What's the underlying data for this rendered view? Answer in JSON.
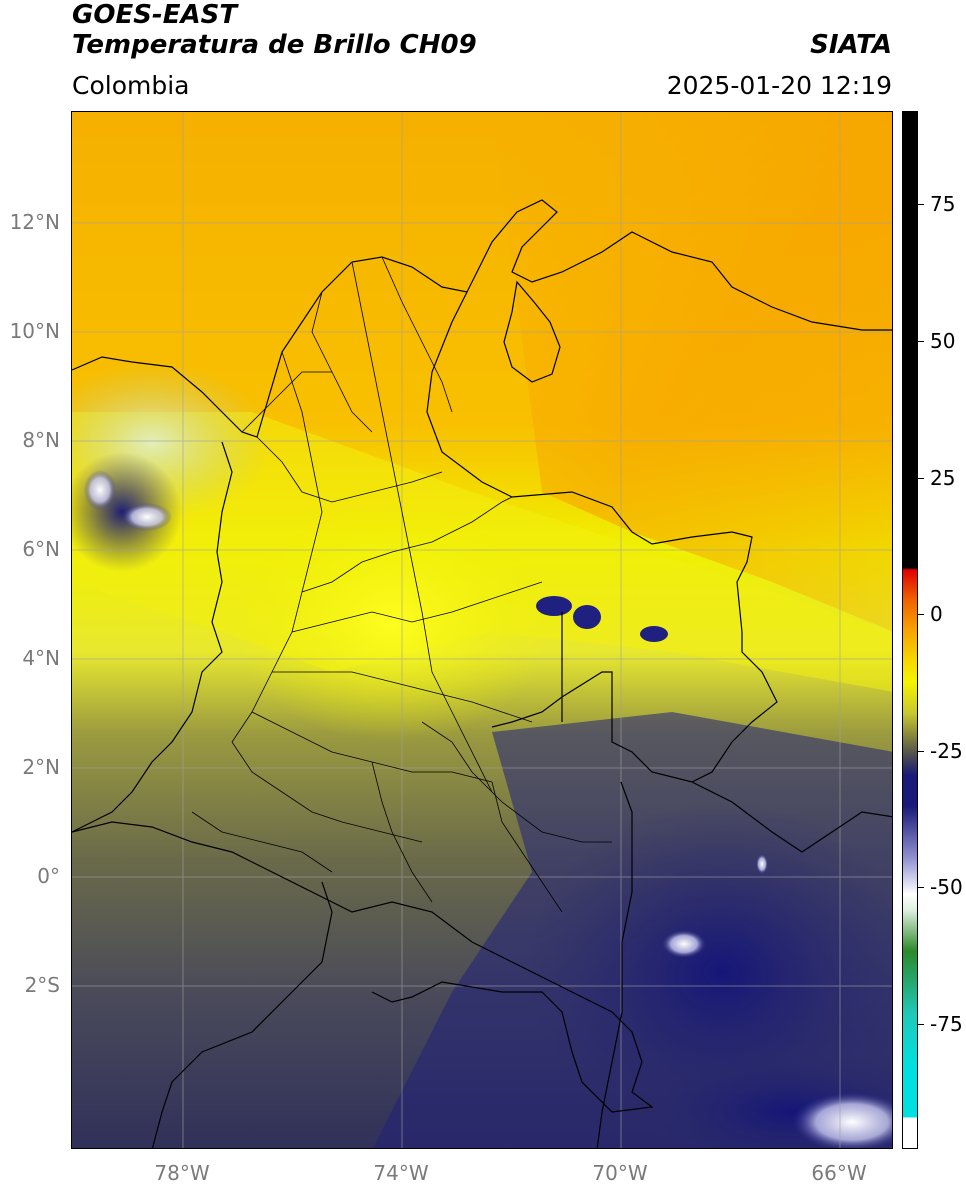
{
  "header": {
    "satellite": "GOES-EAST",
    "product": "Temperatura de Brillo CH09",
    "brand": "SIATA",
    "region": "Colombia",
    "datetime": "2025-01-20 12:19"
  },
  "map": {
    "lat_labels": [
      "12°N",
      "10°N",
      "8°N",
      "6°N",
      "4°N",
      "2°N",
      "0°",
      "2°S"
    ],
    "lon_labels": [
      "78°W",
      "74°W",
      "70°W",
      "66°W"
    ]
  },
  "colorbar": {
    "ticks": [
      "75",
      "50",
      "25",
      "0",
      "-25",
      "-50",
      "-75"
    ],
    "colors": {
      "black": "#000000",
      "red": "#e02000",
      "orange": "#f7a300",
      "yellow": "#f5f500",
      "olive": "#8c8c3a",
      "gray": "#505050",
      "navy": "#1a1a7a",
      "white": "#ffffff",
      "green": "#2a8a2a",
      "teal": "#20c8b8",
      "cyan": "#00e0e0"
    }
  }
}
